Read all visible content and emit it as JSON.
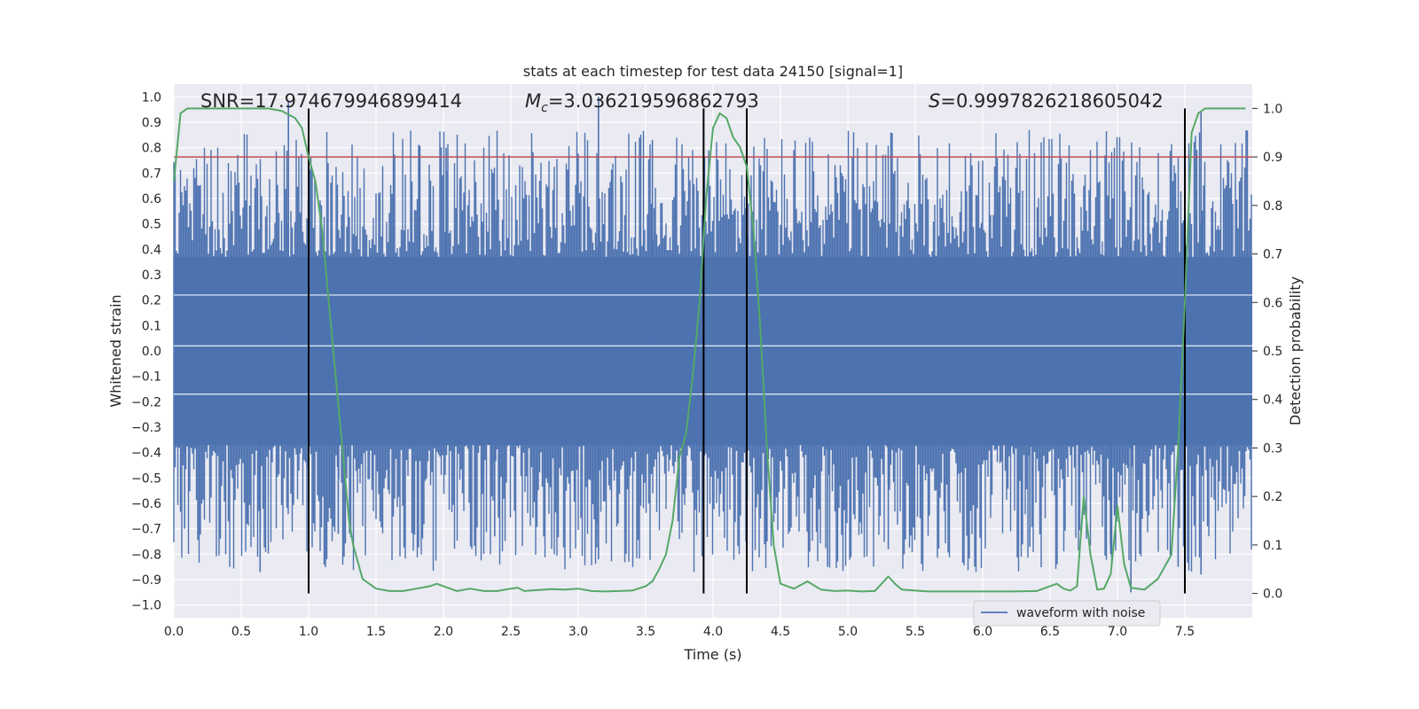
{
  "chart_data": {
    "type": "line",
    "title": "stats at each timestep for test data 24150 [signal=1]",
    "xlabel": "Time (s)",
    "ylabel": "Whitened strain",
    "ylabel_right": "Detection probability",
    "xlim": [
      0.0,
      8.0
    ],
    "ylim": [
      -1.05,
      1.05
    ],
    "ylim_right": [
      -0.05,
      1.05
    ],
    "xticks": [
      "0.0",
      "0.5",
      "1.0",
      "1.5",
      "2.0",
      "2.5",
      "3.0",
      "3.5",
      "4.0",
      "4.5",
      "5.0",
      "5.5",
      "6.0",
      "6.5",
      "7.0",
      "7.5"
    ],
    "yticks": [
      "1.0",
      "0.9",
      "0.8",
      "0.7",
      "0.6",
      "0.5",
      "0.4",
      "0.3",
      "0.2",
      "0.1",
      "0.0",
      "-0.1",
      "-0.2",
      "-0.3",
      "-0.4",
      "-0.5",
      "-0.6",
      "-0.7",
      "-0.8",
      "-0.9",
      "-1.0"
    ],
    "yticks_right": [
      "1.0",
      "0.9",
      "0.8",
      "0.7",
      "0.6",
      "0.5",
      "0.4",
      "0.3",
      "0.2",
      "0.1",
      "0.0"
    ],
    "grid": true,
    "legend_position": "lower-right",
    "annotations": {
      "snr_label": "SNR=17.974679946899414",
      "mc_label_prefix": "M",
      "mc_label_sub": "c",
      "mc_label_value": "=3.036219596862793",
      "s_label_prefix": "S",
      "s_label_value": "=0.9997826218605042"
    },
    "threshold": {
      "y": 0.9,
      "axis": "right",
      "color": "#c44e52"
    },
    "event_lines_x": [
      1.0,
      3.93,
      4.25,
      7.5
    ],
    "series": [
      {
        "name": "waveform with noise",
        "axis": "left",
        "color": "#4c72b0",
        "style": "noise",
        "band_inner": 0.37,
        "band_outer": 0.5,
        "spikes": [
          [
            0.85,
            0.98
          ],
          [
            1.82,
            0.8
          ],
          [
            2.02,
            0.8
          ],
          [
            3.15,
            1.0
          ],
          [
            3.55,
            0.83
          ],
          [
            7.62,
            0.94
          ],
          [
            0.64,
            -0.87
          ],
          [
            0.08,
            -0.7
          ],
          [
            2.38,
            -0.73
          ],
          [
            3.15,
            -0.82
          ],
          [
            4.4,
            -0.75
          ],
          [
            4.85,
            -0.85
          ],
          [
            5.3,
            -0.78
          ],
          [
            7.1,
            -0.95
          ],
          [
            7.62,
            -0.88
          ],
          [
            1.22,
            -0.72
          ],
          [
            6.35,
            -0.77
          ],
          [
            6.95,
            -0.8
          ],
          [
            7.45,
            -0.85
          ]
        ]
      },
      {
        "name": "detection probability",
        "axis": "right",
        "color": "#55a868",
        "x": [
          0.0,
          0.05,
          0.1,
          0.2,
          0.3,
          0.5,
          0.7,
          0.8,
          0.9,
          0.95,
          1.0,
          1.05,
          1.1,
          1.15,
          1.2,
          1.25,
          1.3,
          1.33,
          1.4,
          1.45,
          1.5,
          1.6,
          1.7,
          1.8,
          1.9,
          1.95,
          2.0,
          2.1,
          2.2,
          2.3,
          2.4,
          2.5,
          2.55,
          2.6,
          2.7,
          2.8,
          2.9,
          3.0,
          3.1,
          3.2,
          3.3,
          3.4,
          3.5,
          3.55,
          3.6,
          3.65,
          3.7,
          3.75,
          3.8,
          3.85,
          3.9,
          3.95,
          4.0,
          4.05,
          4.1,
          4.15,
          4.2,
          4.25,
          4.3,
          4.35,
          4.4,
          4.45,
          4.5,
          4.55,
          4.6,
          4.7,
          4.8,
          4.9,
          5.0,
          5.1,
          5.2,
          5.3,
          5.35,
          5.4,
          5.5,
          5.6,
          5.7,
          5.8,
          6.0,
          6.2,
          6.4,
          6.5,
          6.55,
          6.6,
          6.65,
          6.7,
          6.75,
          6.8,
          6.85,
          6.9,
          6.95,
          7.0,
          7.05,
          7.1,
          7.15,
          7.2,
          7.3,
          7.4,
          7.45,
          7.5,
          7.55,
          7.6,
          7.65,
          7.7,
          7.8,
          7.9,
          7.95
        ],
        "values": [
          0.85,
          0.99,
          1.0,
          1.0,
          1.0,
          1.0,
          1.0,
          0.995,
          0.98,
          0.96,
          0.9,
          0.85,
          0.75,
          0.6,
          0.45,
          0.3,
          0.15,
          0.1,
          0.03,
          0.02,
          0.01,
          0.005,
          0.005,
          0.01,
          0.015,
          0.02,
          0.015,
          0.005,
          0.01,
          0.005,
          0.005,
          0.01,
          0.012,
          0.005,
          0.007,
          0.009,
          0.008,
          0.01,
          0.005,
          0.004,
          0.005,
          0.006,
          0.015,
          0.025,
          0.05,
          0.08,
          0.15,
          0.28,
          0.33,
          0.45,
          0.6,
          0.82,
          0.96,
          0.99,
          0.98,
          0.94,
          0.92,
          0.88,
          0.75,
          0.55,
          0.3,
          0.1,
          0.02,
          0.015,
          0.01,
          0.025,
          0.008,
          0.005,
          0.006,
          0.004,
          0.005,
          0.035,
          0.02,
          0.008,
          0.006,
          0.004,
          0.004,
          0.004,
          0.004,
          0.004,
          0.005,
          0.015,
          0.02,
          0.01,
          0.006,
          0.015,
          0.2,
          0.08,
          0.008,
          0.01,
          0.04,
          0.18,
          0.06,
          0.012,
          0.01,
          0.008,
          0.03,
          0.08,
          0.3,
          0.6,
          0.95,
          0.99,
          1.0,
          1.0,
          1.0,
          1.0,
          1.0
        ]
      }
    ]
  }
}
